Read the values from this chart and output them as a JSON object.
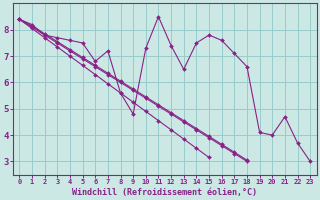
{
  "xlabel": "Windchill (Refroidissement éolien,°C)",
  "bg_color": "#cce8e4",
  "line_color": "#882288",
  "grid_color": "#99cccc",
  "xlim": [
    -0.5,
    23.5
  ],
  "ylim": [
    2.5,
    9.0
  ],
  "yticks": [
    3,
    4,
    5,
    6,
    7,
    8
  ],
  "xticks": [
    0,
    1,
    2,
    3,
    4,
    5,
    6,
    7,
    8,
    9,
    10,
    11,
    12,
    13,
    14,
    15,
    16,
    17,
    18,
    19,
    20,
    21,
    22,
    23
  ],
  "series": [
    [
      8.4,
      8.2,
      7.8,
      7.7,
      7.6,
      7.5,
      6.8,
      7.2,
      5.6,
      4.8,
      7.3,
      8.5,
      7.4,
      6.5,
      7.5,
      7.8,
      7.6,
      7.1,
      6.6,
      4.1,
      4.0,
      4.7,
      3.7,
      3.0
    ],
    [
      8.4,
      8.15,
      7.85,
      7.55,
      7.25,
      6.95,
      6.65,
      6.35,
      6.05,
      5.75,
      5.45,
      5.15,
      4.85,
      4.55,
      4.25,
      3.95,
      3.65,
      3.35,
      3.05,
      null,
      null,
      null,
      null,
      null
    ],
    [
      8.4,
      8.1,
      7.8,
      7.5,
      7.2,
      6.9,
      6.6,
      6.3,
      6.0,
      5.7,
      5.4,
      5.1,
      4.8,
      4.5,
      4.2,
      3.9,
      3.6,
      3.3,
      3.0,
      null,
      null,
      null,
      null,
      null
    ],
    [
      8.4,
      8.05,
      7.7,
      7.35,
      7.0,
      6.65,
      6.3,
      5.95,
      5.6,
      5.25,
      4.9,
      4.55,
      4.2,
      3.85,
      3.5,
      3.15,
      null,
      null,
      null,
      null,
      null,
      null,
      null,
      null
    ]
  ]
}
